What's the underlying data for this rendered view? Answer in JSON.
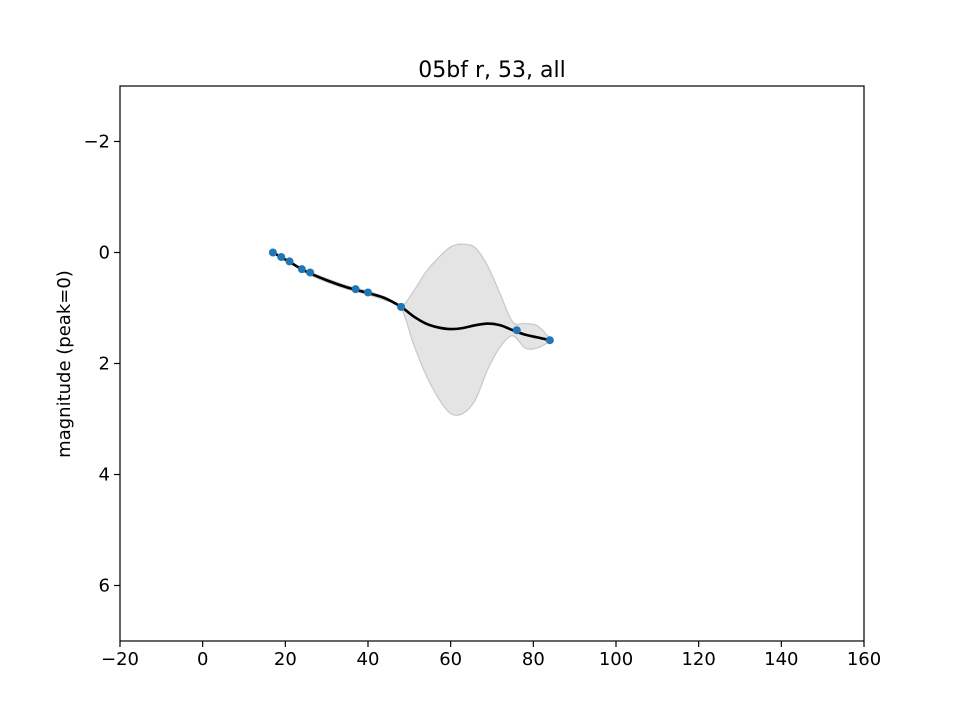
{
  "chart_data": {
    "type": "line",
    "title": "05bf r, 53, all",
    "xlabel": "",
    "ylabel": "magnitude (peak=0)",
    "xlim": [
      -20,
      160
    ],
    "ylim": [
      7,
      -3
    ],
    "y_inverted": true,
    "grid": false,
    "xticks": [
      -20,
      0,
      20,
      40,
      60,
      80,
      100,
      120,
      140,
      160
    ],
    "yticks": [
      -2,
      0,
      2,
      4,
      6
    ],
    "colors": {
      "points": "#1f77b4",
      "fit": "#000000",
      "band": "#d9d9d9"
    },
    "series": [
      {
        "kind": "points",
        "x": [
          17,
          19,
          21,
          24,
          26,
          37,
          40,
          48,
          76,
          84
        ],
        "y": [
          0.0,
          0.08,
          0.16,
          0.3,
          0.36,
          0.66,
          0.72,
          0.98,
          1.4,
          1.58
        ]
      },
      {
        "kind": "fit",
        "x": [
          17,
          21,
          25,
          30,
          35,
          40,
          44,
          48,
          51,
          54,
          57,
          60,
          63,
          66,
          69,
          72,
          75,
          78,
          81,
          84
        ],
        "y": [
          0.0,
          0.17,
          0.34,
          0.5,
          0.63,
          0.73,
          0.82,
          0.98,
          1.15,
          1.28,
          1.35,
          1.38,
          1.36,
          1.31,
          1.28,
          1.31,
          1.4,
          1.48,
          1.53,
          1.58
        ],
        "lower": [
          0.0,
          0.17,
          0.32,
          0.47,
          0.6,
          0.7,
          0.8,
          0.96,
          0.7,
          0.35,
          0.1,
          -0.1,
          -0.15,
          -0.08,
          0.25,
          0.75,
          1.25,
          1.28,
          1.32,
          1.55
        ],
        "upper": [
          0.0,
          0.17,
          0.37,
          0.53,
          0.66,
          0.76,
          0.86,
          1.0,
          1.65,
          2.2,
          2.62,
          2.9,
          2.9,
          2.65,
          2.1,
          1.7,
          1.5,
          1.72,
          1.72,
          1.6
        ]
      }
    ]
  }
}
